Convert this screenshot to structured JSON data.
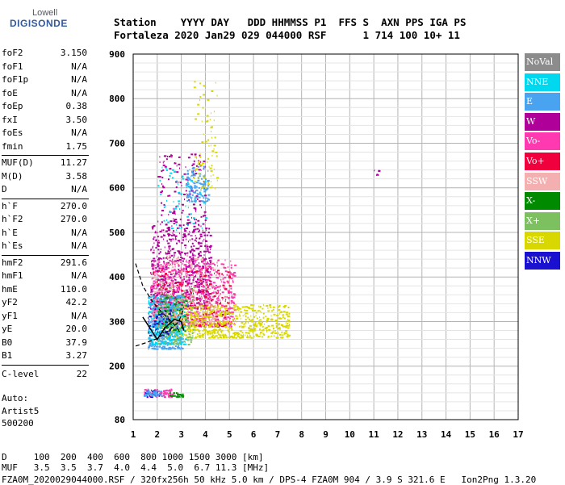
{
  "logo": {
    "top": "Lowell",
    "main": "DIGISONDE"
  },
  "header": {
    "line1": "Station    YYYY DAY   DDD HHMMSS P1  FFS S  AXN PPS IGA PS",
    "line2": "Fortaleza 2020 Jan29 029 044000 RSF      1 714 100 10+ 11"
  },
  "params_group1": [
    {
      "name": "foF2",
      "value": "3.150"
    },
    {
      "name": "foF1",
      "value": "N/A"
    },
    {
      "name": "foF1p",
      "value": "N/A"
    },
    {
      "name": "foE",
      "value": "N/A"
    },
    {
      "name": "foEp",
      "value": "0.38"
    },
    {
      "name": "fxI",
      "value": "3.50"
    },
    {
      "name": "foEs",
      "value": "N/A"
    },
    {
      "name": "fmin",
      "value": "1.75"
    }
  ],
  "params_group2": [
    {
      "name": "MUF(D)",
      "value": "11.27"
    },
    {
      "name": "M(D)",
      "value": "3.58"
    },
    {
      "name": "D",
      "value": "N/A"
    }
  ],
  "params_group3": [
    {
      "name": "h`F",
      "value": "270.0"
    },
    {
      "name": "h`F2",
      "value": "270.0"
    },
    {
      "name": "h`E",
      "value": "N/A"
    },
    {
      "name": "h`Es",
      "value": "N/A"
    }
  ],
  "params_group4": [
    {
      "name": "hmF2",
      "value": "291.6"
    },
    {
      "name": "hmF1",
      "value": "N/A"
    },
    {
      "name": "hmE",
      "value": "110.0"
    },
    {
      "name": "yF2",
      "value": "42.2"
    },
    {
      "name": "yF1",
      "value": "N/A"
    },
    {
      "name": "yE",
      "value": "20.0"
    },
    {
      "name": "B0",
      "value": "37.9"
    },
    {
      "name": "B1",
      "value": "3.27"
    }
  ],
  "clevel": {
    "name": "C-level",
    "value": "22"
  },
  "auto": {
    "line1": "Auto:",
    "line2": "Artist5",
    "line3": "500200"
  },
  "legend": [
    {
      "label": "NoVal",
      "color": "#8c8c8c"
    },
    {
      "label": "NNE",
      "color": "#00d8f0"
    },
    {
      "label": "E",
      "color": "#4aa3f0"
    },
    {
      "label": "W",
      "color": "#b0009a"
    },
    {
      "label": "Vo-",
      "color": "#ff3ab0"
    },
    {
      "label": "Vo+",
      "color": "#f0003c"
    },
    {
      "label": "SSW",
      "color": "#f4b0b0"
    },
    {
      "label": "X-",
      "color": "#008a00"
    },
    {
      "label": "X+",
      "color": "#7cc060"
    },
    {
      "label": "SSE",
      "color": "#d8d800"
    },
    {
      "label": "NNW",
      "color": "#1a10d0"
    }
  ],
  "footer": {
    "d_row": "D     100  200  400  600  800 1000 1500 3000 [km]",
    "muf_row": "MUF   3.5  3.5  3.7  4.0  4.4  5.0  6.7 11.3 [MHz]",
    "file_row": "FZA0M_2020029044000.RSF / 320fx256h 50 kHz 5.0 km / DPS-4 FZA0M 904 / 3.9 S 321.6 E   Ion2Png 1.3.20"
  },
  "chart_data": {
    "type": "scatter",
    "xlabel": "",
    "ylabel": "",
    "xlim": [
      1,
      17
    ],
    "ylim": [
      80,
      900
    ],
    "x_ticks": [
      1,
      2,
      3,
      4,
      5,
      6,
      7,
      8,
      9,
      10,
      11,
      12,
      13,
      14,
      15,
      16,
      17
    ],
    "y_ticks": [
      80,
      200,
      300,
      400,
      500,
      600,
      700,
      800,
      900
    ],
    "grid": true,
    "legend_position": "right",
    "clusters": [
      {
        "series": "W",
        "x": [
          1.7,
          4.2
        ],
        "y": [
          330,
          520
        ],
        "count": 700
      },
      {
        "series": "W",
        "x": [
          2.0,
          4.0
        ],
        "y": [
          520,
          680
        ],
        "count": 150
      },
      {
        "series": "Vo-",
        "x": [
          1.7,
          5.2
        ],
        "y": [
          290,
          440
        ],
        "count": 700
      },
      {
        "series": "Vo+",
        "x": [
          1.8,
          5.0
        ],
        "y": [
          290,
          420
        ],
        "count": 250
      },
      {
        "series": "SSE",
        "x": [
          2.3,
          7.5
        ],
        "y": [
          265,
          340
        ],
        "count": 700
      },
      {
        "series": "E",
        "x": [
          1.6,
          3.0
        ],
        "y": [
          240,
          360
        ],
        "count": 400
      },
      {
        "series": "E",
        "x": [
          3.2,
          4.1
        ],
        "y": [
          570,
          650
        ],
        "count": 120
      },
      {
        "series": "NNE",
        "x": [
          1.6,
          3.2
        ],
        "y": [
          250,
          360
        ],
        "count": 250
      },
      {
        "series": "NNE",
        "x": [
          2.0,
          4.0
        ],
        "y": [
          500,
          650
        ],
        "count": 60
      },
      {
        "series": "SSW",
        "x": [
          1.8,
          4.5
        ],
        "y": [
          300,
          450
        ],
        "count": 180
      },
      {
        "series": "X-",
        "x": [
          2.0,
          3.2
        ],
        "y": [
          280,
          360
        ],
        "count": 80
      },
      {
        "series": "X+",
        "x": [
          2.0,
          3.5
        ],
        "y": [
          250,
          380
        ],
        "count": 120
      },
      {
        "series": "NNW",
        "x": [
          1.6,
          2.6
        ],
        "y": [
          270,
          330
        ],
        "count": 60
      },
      {
        "series": "SSE",
        "x": [
          3.5,
          4.5
        ],
        "y": [
          600,
          850
        ],
        "count": 80
      },
      {
        "series": "Vo-",
        "x": [
          1.4,
          2.6
        ],
        "y": [
          132,
          150
        ],
        "count": 90
      },
      {
        "series": "NNW",
        "x": [
          1.5,
          2.1
        ],
        "y": [
          132,
          148
        ],
        "count": 30
      },
      {
        "series": "X-",
        "x": [
          2.5,
          3.1
        ],
        "y": [
          132,
          142
        ],
        "count": 25
      },
      {
        "series": "E",
        "x": [
          1.4,
          2.2
        ],
        "y": [
          134,
          146
        ],
        "count": 40
      },
      {
        "series": "W",
        "x": [
          11.0,
          11.2
        ],
        "y": [
          630,
          642
        ],
        "count": 6
      }
    ],
    "profile_curves": {
      "dashed_upper": [
        [
          1.1,
          430
        ],
        [
          1.4,
          380
        ],
        [
          1.8,
          345
        ],
        [
          2.2,
          320
        ],
        [
          2.6,
          300
        ],
        [
          2.9,
          280
        ]
      ],
      "dashed_lower": [
        [
          1.1,
          245
        ],
        [
          1.5,
          252
        ],
        [
          2.0,
          262
        ],
        [
          2.5,
          280
        ],
        [
          2.9,
          300
        ],
        [
          3.1,
          330
        ]
      ],
      "solid_trace": [
        [
          1.4,
          310
        ],
        [
          1.7,
          285
        ],
        [
          2.0,
          260
        ],
        [
          2.3,
          285
        ],
        [
          2.7,
          305
        ],
        [
          3.0,
          300
        ],
        [
          3.1,
          280
        ]
      ]
    }
  }
}
